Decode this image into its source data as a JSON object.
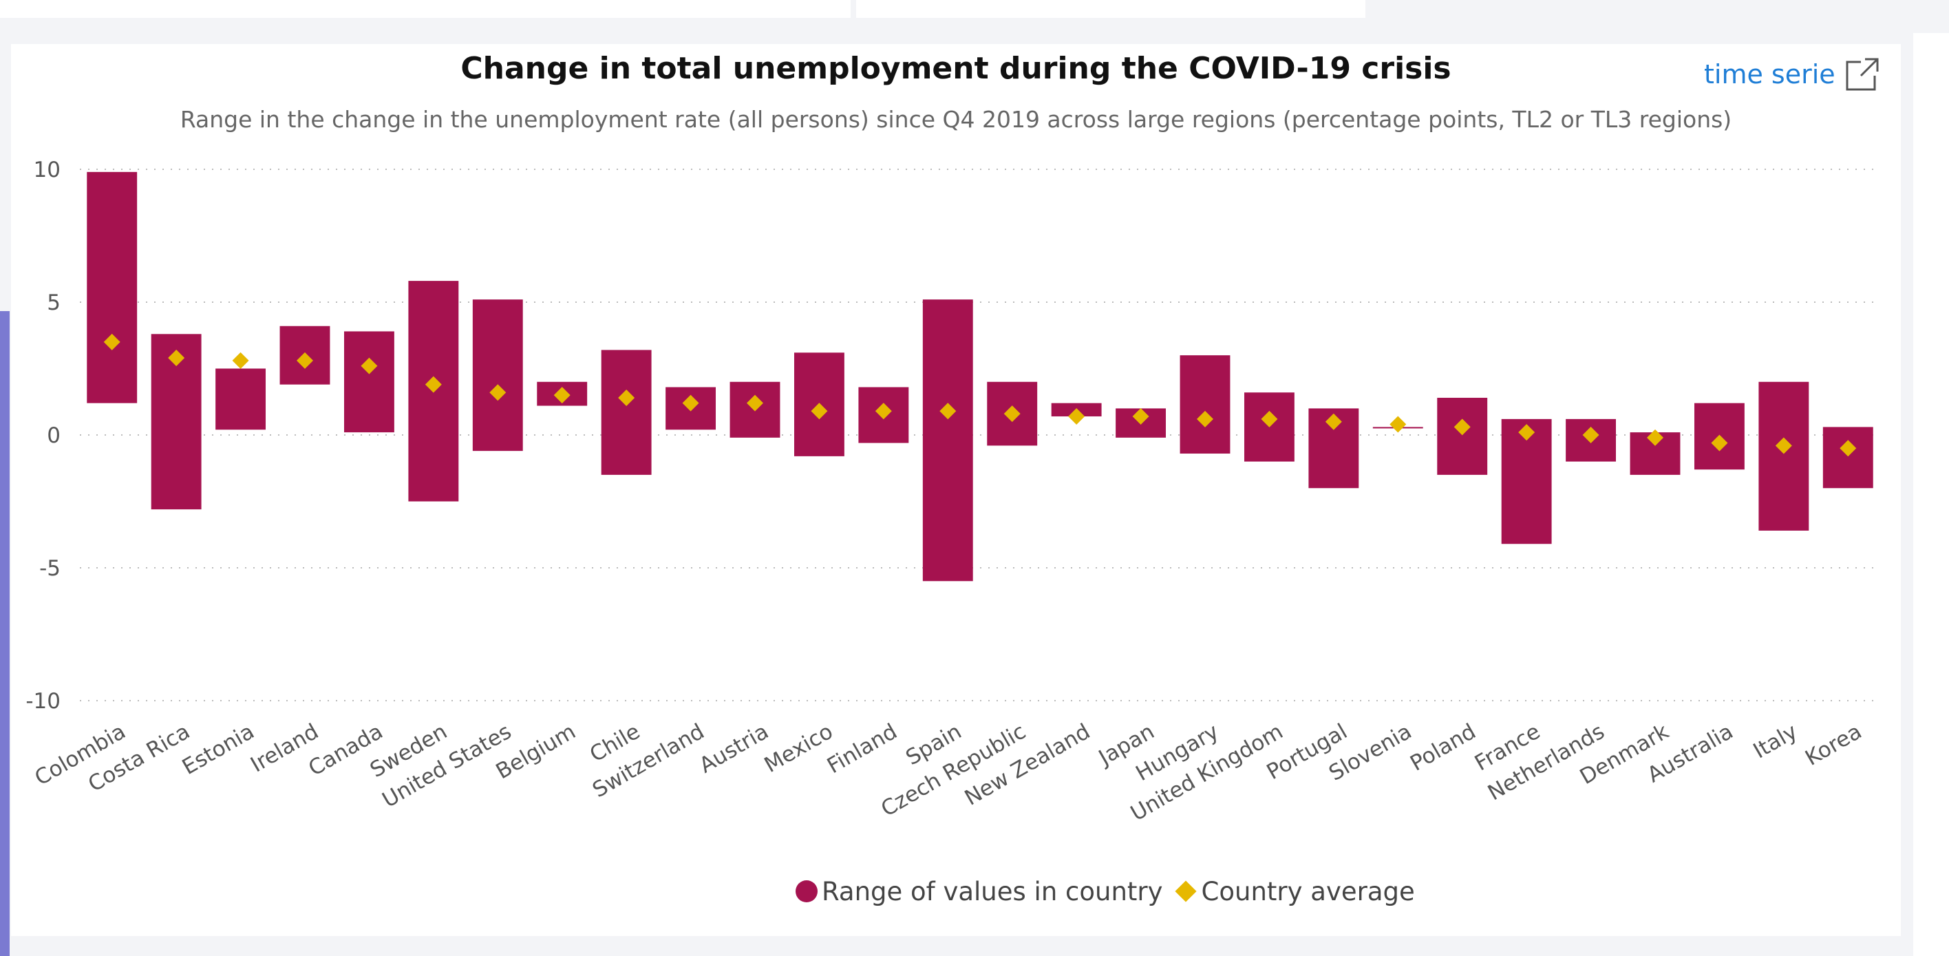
{
  "header": {
    "link_label": "time serie"
  },
  "colors": {
    "range": "#a5124f",
    "average": "#e6b800",
    "accent": "#7b7ad1",
    "link": "#1f7ed6"
  },
  "chart_data": {
    "type": "floating-bar",
    "title": "Change in total unemployment during the COVID-19 crisis",
    "subtitle": "Range in the change in the unemployment rate (all persons) since Q4 2019 across large regions (percentage points, TL2 or TL3 regions)",
    "ylim": [
      -10,
      10
    ],
    "y_ticks": [
      10,
      5,
      0,
      -5,
      -10
    ],
    "grid": "horizontal dotted",
    "legend_position": "bottom-center",
    "categories": [
      "Colombia",
      "Costa Rica",
      "Estonia",
      "Ireland",
      "Canada",
      "Sweden",
      "United States",
      "Belgium",
      "Chile",
      "Switzerland",
      "Austria",
      "Mexico",
      "Finland",
      "Spain",
      "Czech Republic",
      "New Zealand",
      "Japan",
      "Hungary",
      "United Kingdom",
      "Portugal",
      "Slovenia",
      "Poland",
      "France",
      "Netherlands",
      "Denmark",
      "Australia",
      "Italy",
      "Korea"
    ],
    "series": [
      {
        "name": "Range of values in country",
        "low": [
          1.2,
          -2.8,
          0.2,
          1.9,
          0.1,
          -2.5,
          -0.6,
          1.1,
          -1.5,
          0.2,
          -0.1,
          -0.8,
          -0.3,
          -5.5,
          -0.4,
          0.7,
          -0.1,
          -0.7,
          -1.0,
          -2.0,
          0.3,
          -1.5,
          -4.1,
          -1.0,
          -1.5,
          -1.3,
          -3.6,
          -2.0
        ],
        "high": [
          9.9,
          3.8,
          2.5,
          4.1,
          3.9,
          5.8,
          5.1,
          2.0,
          3.2,
          1.8,
          2.0,
          3.1,
          1.8,
          5.1,
          2.0,
          1.2,
          1.0,
          3.0,
          1.6,
          1.0,
          0.3,
          1.4,
          0.6,
          0.6,
          0.1,
          1.2,
          2.0,
          0.3
        ]
      },
      {
        "name": "Country average",
        "values": [
          3.5,
          2.9,
          2.8,
          2.8,
          2.6,
          1.9,
          1.6,
          1.5,
          1.4,
          1.2,
          1.2,
          0.9,
          0.9,
          0.9,
          0.8,
          0.7,
          0.7,
          0.6,
          0.6,
          0.5,
          0.4,
          0.3,
          0.1,
          0.0,
          -0.1,
          -0.3,
          -0.4,
          -0.5
        ]
      }
    ]
  }
}
